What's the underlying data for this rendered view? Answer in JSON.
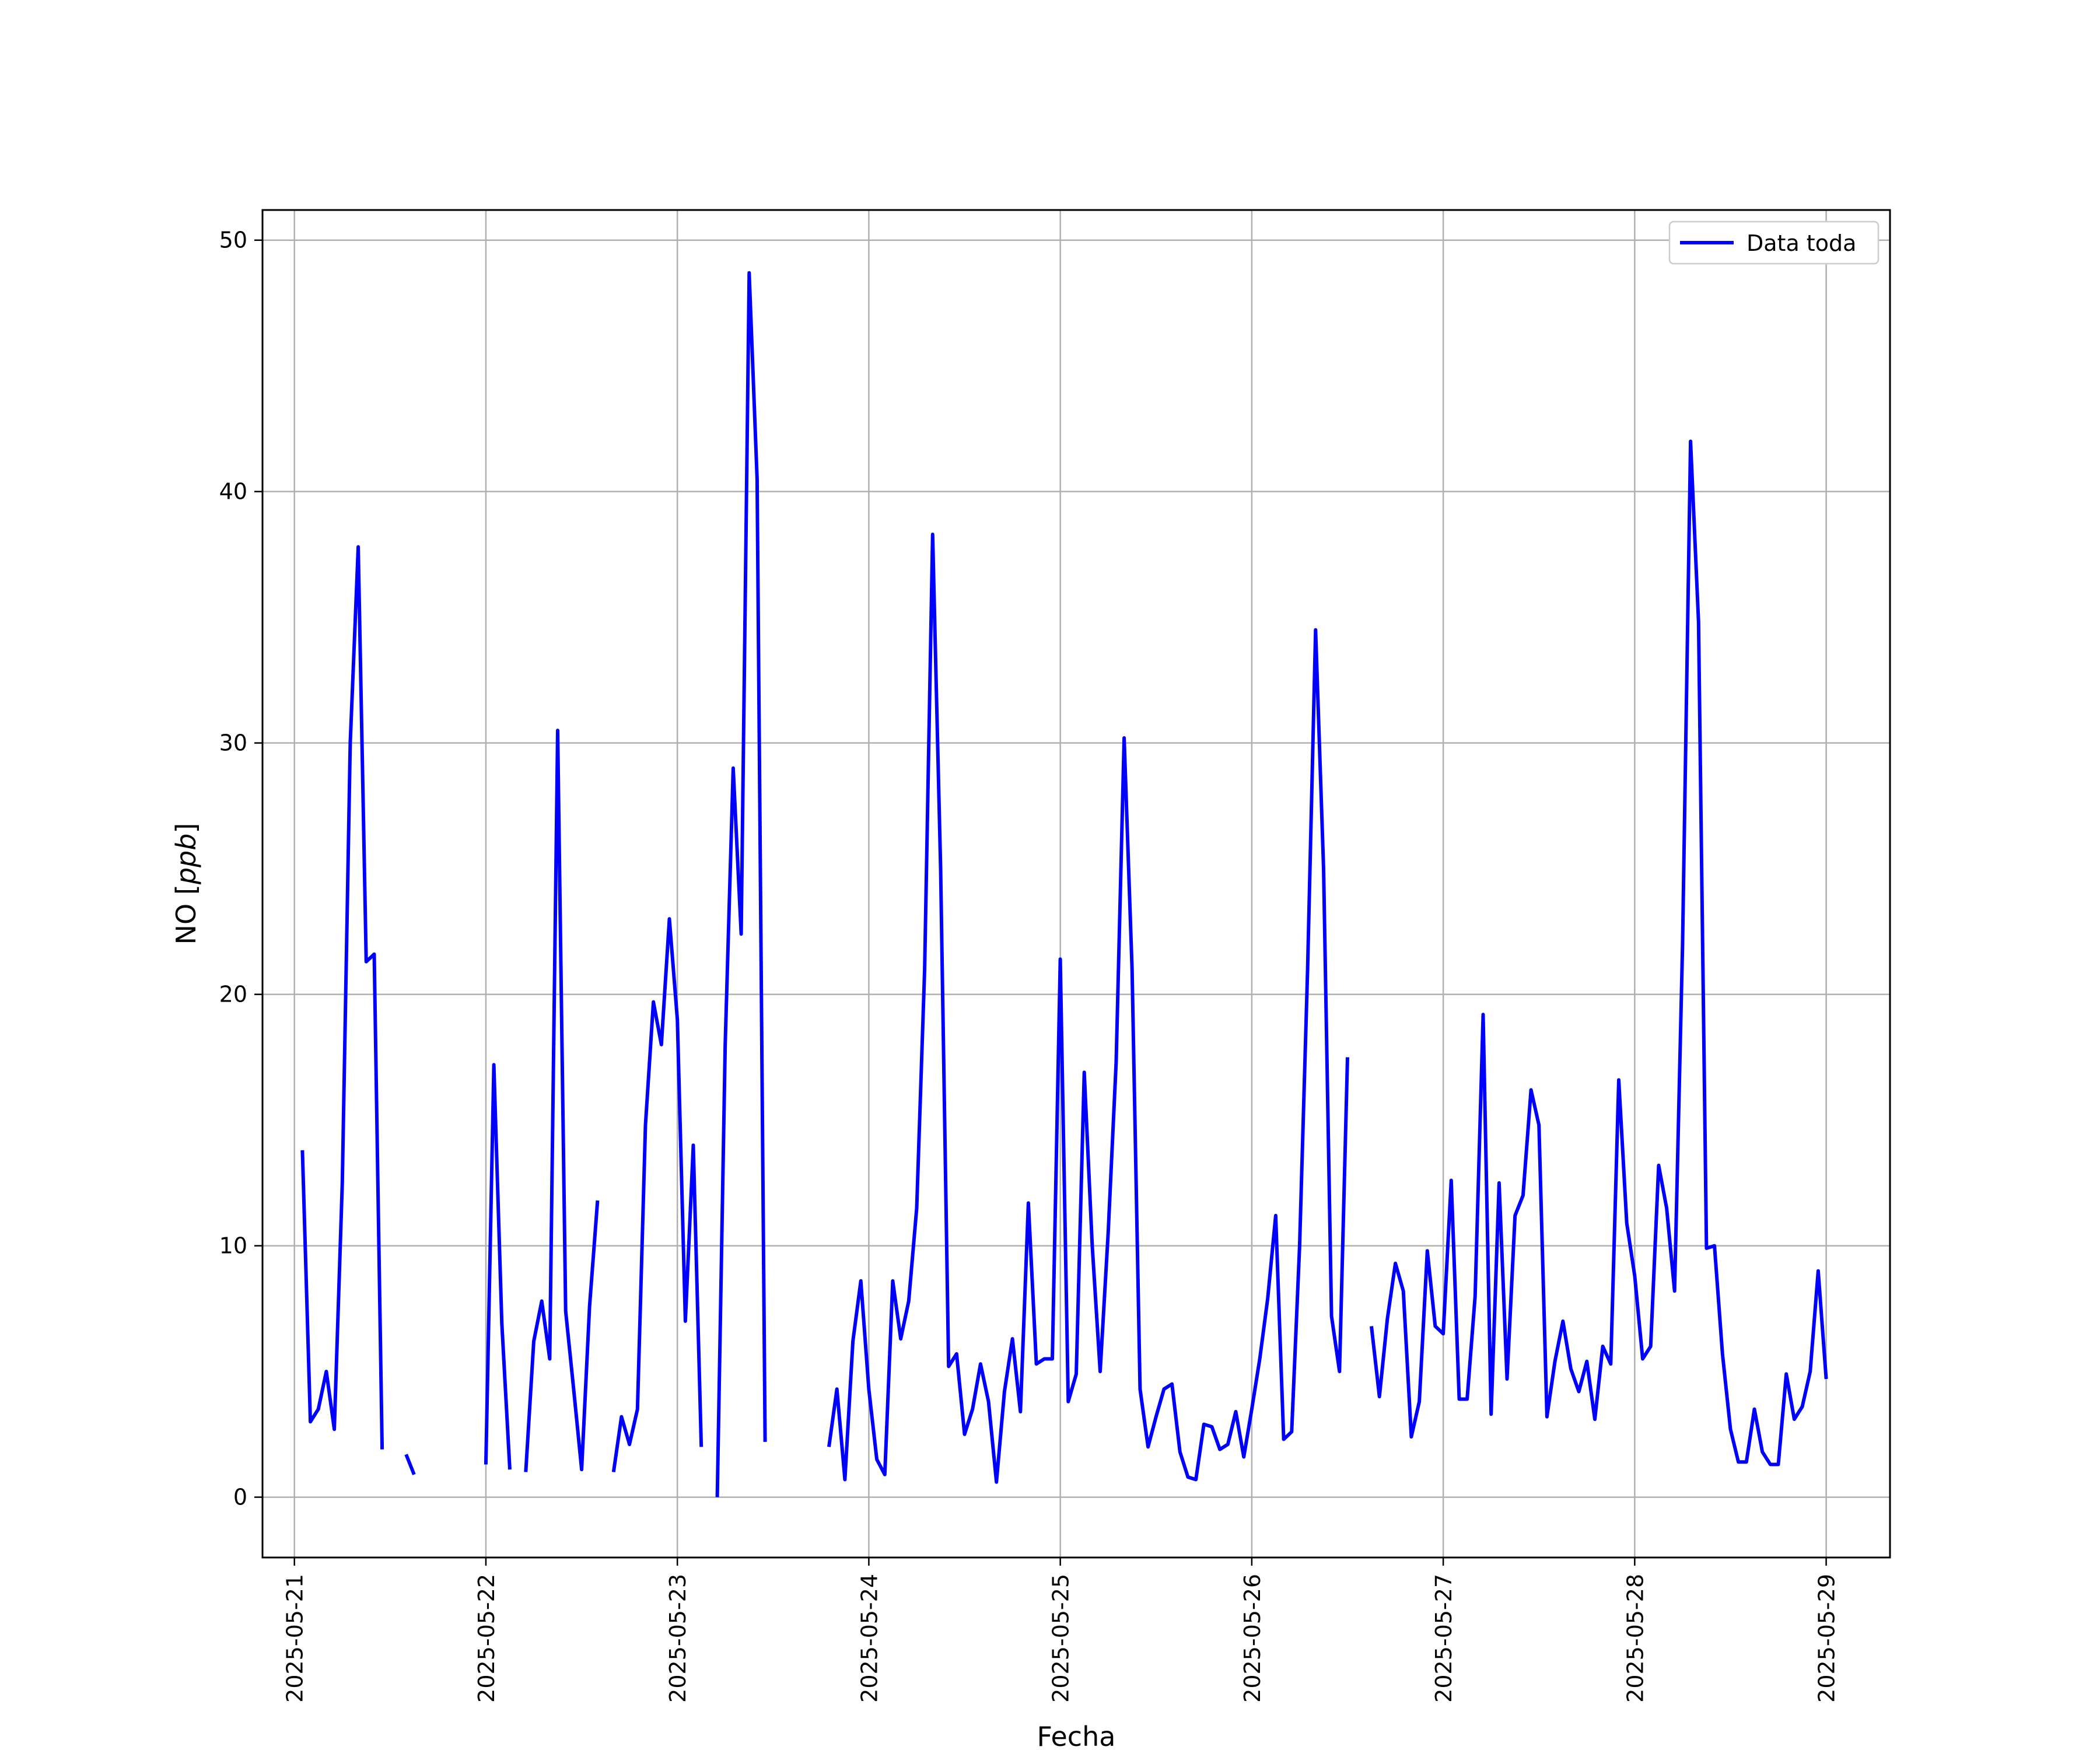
{
  "chart_data": {
    "type": "line",
    "title": "",
    "xlabel": "Fecha",
    "ylabel": "NO [ppb]",
    "ylabel_main": "NO",
    "ylabel_unit": "ppb",
    "x_range": [
      "2025-05-20T20:00",
      "2025-05-29T08:00"
    ],
    "ylim": [
      -2.4,
      51.2
    ],
    "y_ticks": [
      0,
      10,
      20,
      30,
      40,
      50
    ],
    "x_ticks": [
      "2025-05-21",
      "2025-05-22",
      "2025-05-23",
      "2025-05-24",
      "2025-05-25",
      "2025-05-26",
      "2025-05-27",
      "2025-05-28",
      "2025-05-29"
    ],
    "grid": true,
    "legend_position": "top-right",
    "line_color": "#0000ff",
    "series": [
      {
        "name": "Data toda",
        "color": "#0000ff",
        "points": [
          [
            "2025-05-21T01:00",
            13.8
          ],
          [
            "2025-05-21T02:00",
            3.0
          ],
          [
            "2025-05-21T03:00",
            3.5
          ],
          [
            "2025-05-21T04:00",
            5.0
          ],
          [
            "2025-05-21T05:00",
            2.7
          ],
          [
            "2025-05-21T06:00",
            12.5
          ],
          [
            "2025-05-21T07:00",
            30.0
          ],
          [
            "2025-05-21T08:00",
            37.8
          ],
          [
            "2025-05-21T09:00",
            21.3
          ],
          [
            "2025-05-21T10:00",
            21.6
          ],
          [
            "2025-05-21T11:00",
            1.9
          ],
          [
            "2025-05-21T13:00",
            null
          ],
          [
            "2025-05-21T14:00",
            1.7
          ],
          [
            "2025-05-21T15:00",
            0.9
          ],
          [
            "2025-05-21T16:00",
            null
          ],
          [
            "2025-05-22T00:00",
            1.3
          ],
          [
            "2025-05-22T01:00",
            17.2
          ],
          [
            "2025-05-22T02:00",
            6.9
          ],
          [
            "2025-05-22T03:00",
            1.1
          ],
          [
            "2025-05-22T04:00",
            null
          ],
          [
            "2025-05-22T05:00",
            1.0
          ],
          [
            "2025-05-22T06:00",
            6.2
          ],
          [
            "2025-05-22T07:00",
            7.8
          ],
          [
            "2025-05-22T08:00",
            5.5
          ],
          [
            "2025-05-22T09:00",
            30.5
          ],
          [
            "2025-05-22T10:00",
            7.4
          ],
          [
            "2025-05-22T11:00",
            4.3
          ],
          [
            "2025-05-22T12:00",
            1.1
          ],
          [
            "2025-05-22T13:00",
            7.6
          ],
          [
            "2025-05-22T14:00",
            11.8
          ],
          [
            "2025-05-22T15:00",
            null
          ],
          [
            "2025-05-22T16:00",
            1.0
          ],
          [
            "2025-05-22T17:00",
            3.2
          ],
          [
            "2025-05-22T18:00",
            2.1
          ],
          [
            "2025-05-22T19:00",
            3.5
          ],
          [
            "2025-05-22T20:00",
            14.8
          ],
          [
            "2025-05-22T21:00",
            19.7
          ],
          [
            "2025-05-22T22:00",
            18.0
          ],
          [
            "2025-05-22T23:00",
            23.0
          ],
          [
            "2025-05-23T00:00",
            19.0
          ],
          [
            "2025-05-23T01:00",
            7.0
          ],
          [
            "2025-05-23T02:00",
            14.0
          ],
          [
            "2025-05-23T03:00",
            2.0
          ],
          [
            "2025-05-23T04:00",
            null
          ],
          [
            "2025-05-23T05:00",
            0.0
          ],
          [
            "2025-05-23T06:00",
            18.0
          ],
          [
            "2025-05-23T07:00",
            29.0
          ],
          [
            "2025-05-23T08:00",
            22.4
          ],
          [
            "2025-05-23T09:00",
            48.7
          ],
          [
            "2025-05-23T10:00",
            40.5
          ],
          [
            "2025-05-23T11:00",
            2.2
          ],
          [
            "2025-05-23T12:00",
            null
          ],
          [
            "2025-05-23T19:00",
            2.0
          ],
          [
            "2025-05-23T20:00",
            4.3
          ],
          [
            "2025-05-23T21:00",
            0.7
          ],
          [
            "2025-05-23T22:00",
            6.2
          ],
          [
            "2025-05-23T23:00",
            8.6
          ],
          [
            "2025-05-24T00:00",
            4.3
          ],
          [
            "2025-05-24T01:00",
            1.5
          ],
          [
            "2025-05-24T02:00",
            0.9
          ],
          [
            "2025-05-24T03:00",
            8.6
          ],
          [
            "2025-05-24T04:00",
            6.3
          ],
          [
            "2025-05-24T05:00",
            7.8
          ],
          [
            "2025-05-24T06:00",
            11.5
          ],
          [
            "2025-05-24T07:00",
            21.0
          ],
          [
            "2025-05-24T08:00",
            38.3
          ],
          [
            "2025-05-24T09:00",
            25.0
          ],
          [
            "2025-05-24T10:00",
            5.2
          ],
          [
            "2025-05-24T11:00",
            5.7
          ],
          [
            "2025-05-24T12:00",
            2.5
          ],
          [
            "2025-05-24T13:00",
            3.5
          ],
          [
            "2025-05-24T14:00",
            5.3
          ],
          [
            "2025-05-24T15:00",
            3.8
          ],
          [
            "2025-05-24T16:00",
            0.6
          ],
          [
            "2025-05-24T17:00",
            4.2
          ],
          [
            "2025-05-24T18:00",
            6.3
          ],
          [
            "2025-05-24T19:00",
            3.4
          ],
          [
            "2025-05-24T20:00",
            11.7
          ],
          [
            "2025-05-24T21:00",
            5.3
          ],
          [
            "2025-05-24T22:00",
            5.5
          ],
          [
            "2025-05-24T23:00",
            5.5
          ],
          [
            "2025-05-25T00:00",
            21.4
          ],
          [
            "2025-05-25T01:00",
            3.8
          ],
          [
            "2025-05-25T02:00",
            4.9
          ],
          [
            "2025-05-25T03:00",
            16.9
          ],
          [
            "2025-05-25T04:00",
            10.0
          ],
          [
            "2025-05-25T05:00",
            5.0
          ],
          [
            "2025-05-25T06:00",
            10.5
          ],
          [
            "2025-05-25T07:00",
            17.3
          ],
          [
            "2025-05-25T08:00",
            30.2
          ],
          [
            "2025-05-25T09:00",
            21.0
          ],
          [
            "2025-05-25T10:00",
            4.3
          ],
          [
            "2025-05-25T11:00",
            2.0
          ],
          [
            "2025-05-25T12:00",
            3.2
          ],
          [
            "2025-05-25T13:00",
            4.3
          ],
          [
            "2025-05-25T14:00",
            4.5
          ],
          [
            "2025-05-25T15:00",
            1.8
          ],
          [
            "2025-05-25T16:00",
            0.8
          ],
          [
            "2025-05-25T17:00",
            0.7
          ],
          [
            "2025-05-25T18:00",
            2.9
          ],
          [
            "2025-05-25T19:00",
            2.8
          ],
          [
            "2025-05-25T20:00",
            1.9
          ],
          [
            "2025-05-25T21:00",
            2.1
          ],
          [
            "2025-05-25T22:00",
            3.4
          ],
          [
            "2025-05-25T23:00",
            1.6
          ],
          [
            "2025-05-26T00:00",
            3.5
          ],
          [
            "2025-05-26T01:00",
            5.5
          ],
          [
            "2025-05-26T02:00",
            7.9
          ],
          [
            "2025-05-26T03:00",
            11.2
          ],
          [
            "2025-05-26T04:00",
            2.3
          ],
          [
            "2025-05-26T05:00",
            2.6
          ],
          [
            "2025-05-26T06:00",
            10.0
          ],
          [
            "2025-05-26T07:00",
            21.0
          ],
          [
            "2025-05-26T08:00",
            34.5
          ],
          [
            "2025-05-26T09:00",
            25.0
          ],
          [
            "2025-05-26T10:00",
            7.2
          ],
          [
            "2025-05-26T11:00",
            5.0
          ],
          [
            "2025-05-26T12:00",
            17.5
          ],
          [
            "2025-05-26T13:00",
            null
          ],
          [
            "2025-05-26T15:00",
            6.8
          ],
          [
            "2025-05-26T16:00",
            4.0
          ],
          [
            "2025-05-26T17:00",
            7.1
          ],
          [
            "2025-05-26T18:00",
            9.3
          ],
          [
            "2025-05-26T19:00",
            8.2
          ],
          [
            "2025-05-26T20:00",
            2.4
          ],
          [
            "2025-05-26T21:00",
            3.8
          ],
          [
            "2025-05-26T22:00",
            9.8
          ],
          [
            "2025-05-26T23:00",
            6.8
          ],
          [
            "2025-05-27T00:00",
            6.5
          ],
          [
            "2025-05-27T01:00",
            12.6
          ],
          [
            "2025-05-27T02:00",
            3.9
          ],
          [
            "2025-05-27T03:00",
            3.9
          ],
          [
            "2025-05-27T04:00",
            8.0
          ],
          [
            "2025-05-27T05:00",
            19.2
          ],
          [
            "2025-05-27T06:00",
            3.3
          ],
          [
            "2025-05-27T07:00",
            12.5
          ],
          [
            "2025-05-27T08:00",
            4.7
          ],
          [
            "2025-05-27T09:00",
            11.2
          ],
          [
            "2025-05-27T10:00",
            12.0
          ],
          [
            "2025-05-27T11:00",
            16.2
          ],
          [
            "2025-05-27T12:00",
            14.8
          ],
          [
            "2025-05-27T13:00",
            3.2
          ],
          [
            "2025-05-27T14:00",
            5.4
          ],
          [
            "2025-05-27T15:00",
            7.0
          ],
          [
            "2025-05-27T16:00",
            5.1
          ],
          [
            "2025-05-27T17:00",
            4.2
          ],
          [
            "2025-05-27T18:00",
            5.4
          ],
          [
            "2025-05-27T19:00",
            3.1
          ],
          [
            "2025-05-27T20:00",
            6.0
          ],
          [
            "2025-05-27T21:00",
            5.3
          ],
          [
            "2025-05-27T22:00",
            16.6
          ],
          [
            "2025-05-27T23:00",
            10.9
          ],
          [
            "2025-05-28T00:00",
            8.8
          ],
          [
            "2025-05-28T01:00",
            5.5
          ],
          [
            "2025-05-28T02:00",
            6.0
          ],
          [
            "2025-05-28T03:00",
            13.2
          ],
          [
            "2025-05-28T04:00",
            11.5
          ],
          [
            "2025-05-28T05:00",
            8.2
          ],
          [
            "2025-05-28T06:00",
            22.0
          ],
          [
            "2025-05-28T07:00",
            42.0
          ],
          [
            "2025-05-28T08:00",
            34.8
          ],
          [
            "2025-05-28T09:00",
            9.9
          ],
          [
            "2025-05-28T10:00",
            10.0
          ],
          [
            "2025-05-28T11:00",
            5.7
          ],
          [
            "2025-05-28T12:00",
            2.7
          ],
          [
            "2025-05-28T13:00",
            1.4
          ],
          [
            "2025-05-28T14:00",
            1.4
          ],
          [
            "2025-05-28T15:00",
            3.5
          ],
          [
            "2025-05-28T16:00",
            1.8
          ],
          [
            "2025-05-28T17:00",
            1.3
          ],
          [
            "2025-05-28T18:00",
            1.3
          ],
          [
            "2025-05-28T19:00",
            4.9
          ],
          [
            "2025-05-28T20:00",
            3.1
          ],
          [
            "2025-05-28T21:00",
            3.6
          ],
          [
            "2025-05-28T22:00",
            5.0
          ],
          [
            "2025-05-28T23:00",
            9.0
          ],
          [
            "2025-05-29T00:00",
            4.7
          ]
        ]
      }
    ]
  }
}
